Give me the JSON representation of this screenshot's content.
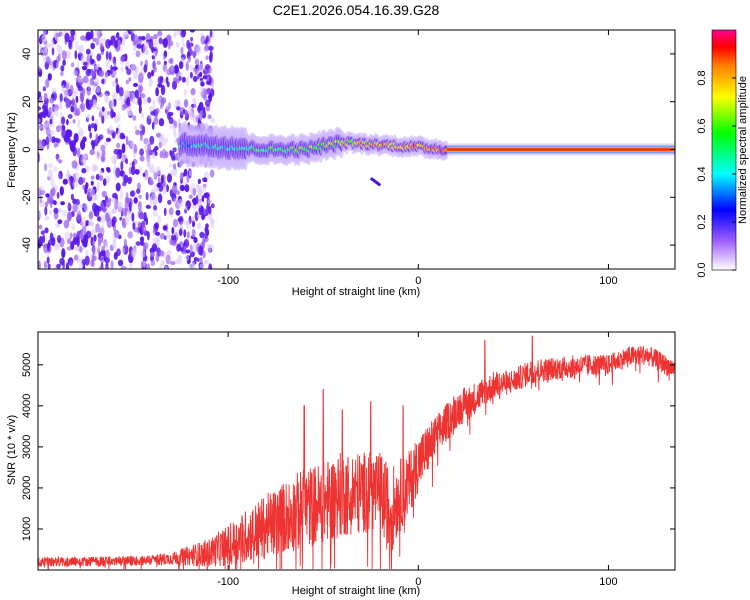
{
  "title": "C2E1.2026.054.16.39.G28",
  "chart_data": [
    {
      "type": "heatmap",
      "name": "spectrogram",
      "xlabel": "Height of straight line (km)",
      "ylabel": "Frequency (Hz)",
      "xlim": [
        -200,
        135
      ],
      "ylim": [
        -50,
        50
      ],
      "xticks": [
        -100,
        0,
        100
      ],
      "yticks": [
        -40,
        -20,
        0,
        20,
        40
      ],
      "colorbar": {
        "label": "Normalized spectral amplitude",
        "range": [
          0,
          1
        ],
        "ticks": [
          0.0,
          0.2,
          0.4,
          0.6,
          0.8
        ],
        "tick_labels": [
          "0.0",
          "0.2",
          "0.4",
          "0.6",
          "0.8"
        ]
      },
      "features": {
        "noise_region_x": [
          -200,
          -108
        ],
        "signal_start_x": -125,
        "carrier_frequency": 0,
        "carrier_line_start_x": 15,
        "drift_track": [
          [
            -120,
            2
          ],
          [
            -100,
            1
          ],
          [
            -80,
            0
          ],
          [
            -60,
            0
          ],
          [
            -40,
            3
          ],
          [
            -20,
            2
          ],
          [
            0,
            1
          ],
          [
            15,
            0
          ]
        ],
        "spur": [
          [
            -25,
            -12
          ],
          [
            -20,
            -15
          ]
        ]
      }
    },
    {
      "type": "line",
      "name": "snr",
      "xlabel": "Height of straight line (km)",
      "ylabel": "SNR (10 * v/v)",
      "xlim": [
        -200,
        135
      ],
      "ylim": [
        0,
        5800
      ],
      "xticks": [
        -100,
        0,
        100
      ],
      "yticks": [
        1000,
        2000,
        3000,
        4000,
        5000
      ],
      "color": "#ee3333",
      "envelope": {
        "x": [
          -200,
          -150,
          -130,
          -110,
          -100,
          -90,
          -80,
          -70,
          -60,
          -50,
          -40,
          -30,
          -20,
          -15,
          -10,
          -5,
          0,
          10,
          20,
          30,
          40,
          50,
          60,
          70,
          80,
          90,
          100,
          110,
          120,
          130,
          135
        ],
        "mean": [
          200,
          220,
          280,
          420,
          600,
          850,
          1050,
          1300,
          1500,
          1650,
          1850,
          1900,
          1900,
          1400,
          1800,
          2100,
          2600,
          3300,
          3900,
          4200,
          4500,
          4600,
          4850,
          4900,
          4950,
          5000,
          5000,
          5200,
          5250,
          5000,
          4900
        ],
        "spread": [
          120,
          120,
          150,
          350,
          500,
          650,
          800,
          900,
          1000,
          1000,
          1050,
          1000,
          1000,
          1100,
          900,
          800,
          700,
          500,
          450,
          400,
          350,
          300,
          300,
          280,
          280,
          260,
          250,
          250,
          250,
          250,
          250
        ]
      },
      "peaks": [
        [
          -60,
          4000
        ],
        [
          -50,
          4400
        ],
        [
          -40,
          3900
        ],
        [
          -25,
          4100
        ],
        [
          -8,
          4000
        ],
        [
          35,
          5600
        ],
        [
          60,
          5700
        ]
      ]
    }
  ]
}
